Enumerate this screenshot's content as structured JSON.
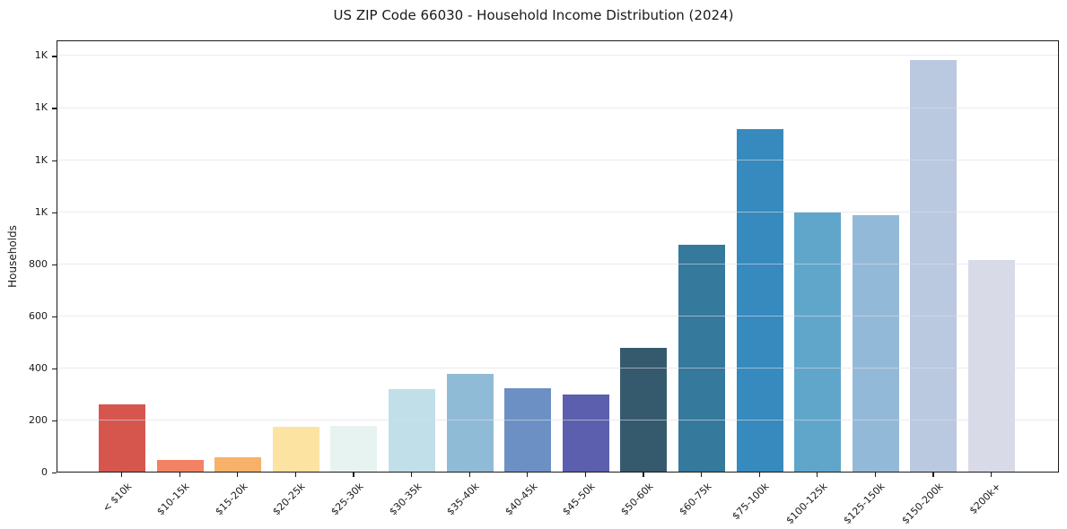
{
  "title": "US ZIP Code 66030 - Household Income Distribution (2024)",
  "chart_data": {
    "type": "bar",
    "title": "US ZIP Code 66030 - Household Income Distribution (2024)",
    "xlabel": "",
    "ylabel": "Households",
    "legend": "none",
    "grid": "horizontal",
    "background_color": "#ffffff",
    "gridline_color": "#e9e9f1",
    "axis_color": "#1a1a1a",
    "ylim": [
      0,
      1660
    ],
    "yticks": [
      {
        "value": 0,
        "label": "0"
      },
      {
        "value": 200,
        "label": "200"
      },
      {
        "value": 400,
        "label": "400"
      },
      {
        "value": 600,
        "label": "600"
      },
      {
        "value": 800,
        "label": "800"
      },
      {
        "value": 1000,
        "label": "1K"
      },
      {
        "value": 1200,
        "label": "1K"
      },
      {
        "value": 1400,
        "label": "1K"
      },
      {
        "value": 1600,
        "label": "1K"
      }
    ],
    "categories": [
      "< $10k",
      "$10-15k",
      "$15-20k",
      "$20-25k",
      "$25-30k",
      "$30-35k",
      "$35-40k",
      "$40-45k",
      "$45-50k",
      "$50-60k",
      "$60-75k",
      "$75-100k",
      "$100-125k",
      "$125-150k",
      "$150-200k",
      "$200k+"
    ],
    "values": [
      260,
      46,
      54,
      171,
      175,
      317,
      377,
      322,
      297,
      477,
      873,
      1315,
      997,
      985,
      1580,
      812
    ],
    "bar_colors": [
      "#d6564e",
      "#f28263",
      "#f7b168",
      "#fde3a1",
      "#e6f3f1",
      "#c0dfe9",
      "#90bbd7",
      "#6c90c4",
      "#5b5fae",
      "#365a6d",
      "#35799c",
      "#378abd",
      "#60a6cb",
      "#93b9d8",
      "#bac9e0",
      "#d8dae8"
    ]
  }
}
